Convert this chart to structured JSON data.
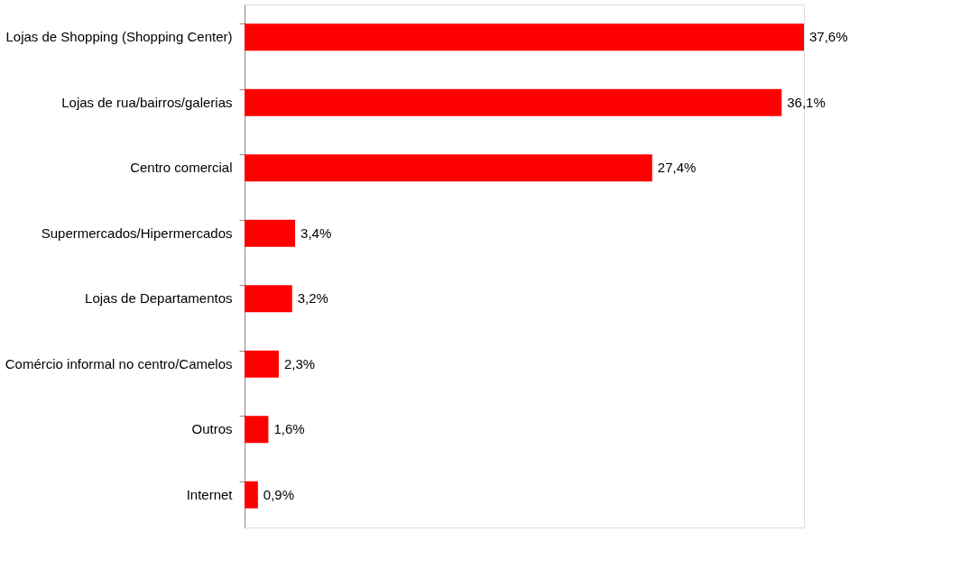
{
  "chart_data": {
    "type": "bar",
    "orientation": "horizontal",
    "categories": [
      "Lojas de Shopping (Shopping Center)",
      "Lojas de rua/bairros/galerias",
      "Centro comercial",
      "Supermercados/Hipermercados",
      "Lojas de Departamentos",
      "Comércio informal no centro/Camelos",
      "Outros",
      "Internet"
    ],
    "values": [
      37.6,
      36.1,
      27.4,
      3.4,
      3.2,
      2.3,
      1.6,
      0.9
    ],
    "value_labels": [
      "37,6%",
      "36,1%",
      "27,4%",
      "3,4%",
      "3,2%",
      "2,3%",
      "1,6%",
      "0,9%"
    ],
    "color": "#ff0000"
  }
}
